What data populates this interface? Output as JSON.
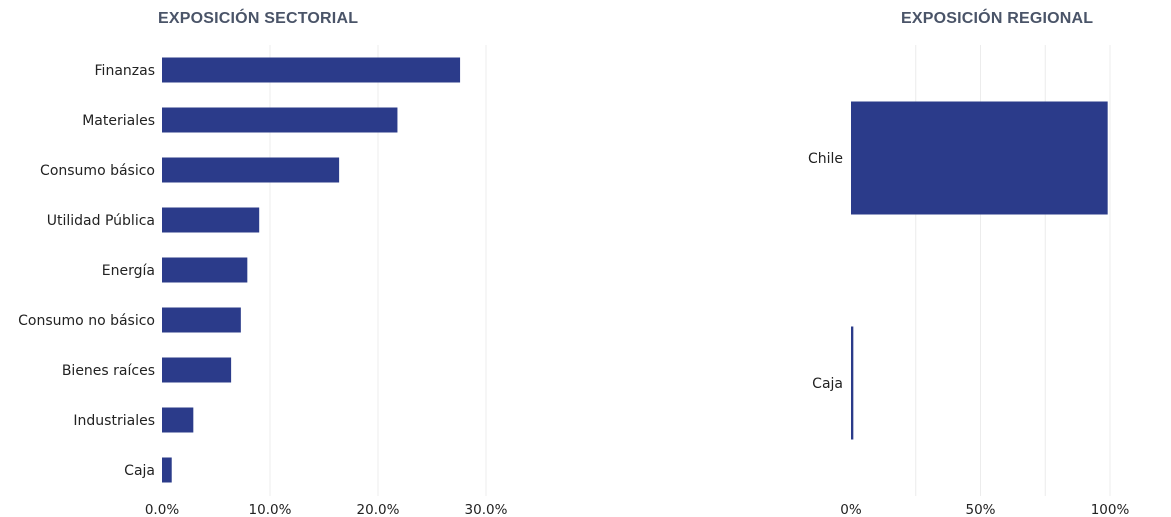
{
  "chart_data": [
    {
      "type": "bar",
      "orientation": "horizontal",
      "title": "EXPOSICIÓN SECTORIAL",
      "categories": [
        "Finanzas",
        "Materiales",
        "Consumo básico",
        "Utilidad Pública",
        "Energía",
        "Consumo no básico",
        "Bienes raíces",
        "Industriales",
        "Caja"
      ],
      "values": [
        27.6,
        21.8,
        16.4,
        9.0,
        7.9,
        7.3,
        6.4,
        2.9,
        0.9
      ],
      "xlim": [
        0,
        30
      ],
      "xticks": [
        "0.0%",
        "10.0%",
        "20.0%",
        "30.0%"
      ],
      "xtick_values": [
        0,
        10,
        20,
        30
      ],
      "grid": true,
      "bar_color": "#2b3b8a"
    },
    {
      "type": "bar",
      "orientation": "horizontal",
      "title": "EXPOSICIÓN REGIONAL",
      "categories": [
        "Chile",
        "Caja"
      ],
      "values": [
        99.1,
        0.9
      ],
      "xlim": [
        0,
        100
      ],
      "xticks": [
        "0%",
        "50%",
        "100%"
      ],
      "xtick_values": [
        0,
        50,
        100
      ],
      "minor_grid_values": [
        25,
        75
      ],
      "grid": true,
      "bar_color": "#2b3b8a"
    }
  ]
}
